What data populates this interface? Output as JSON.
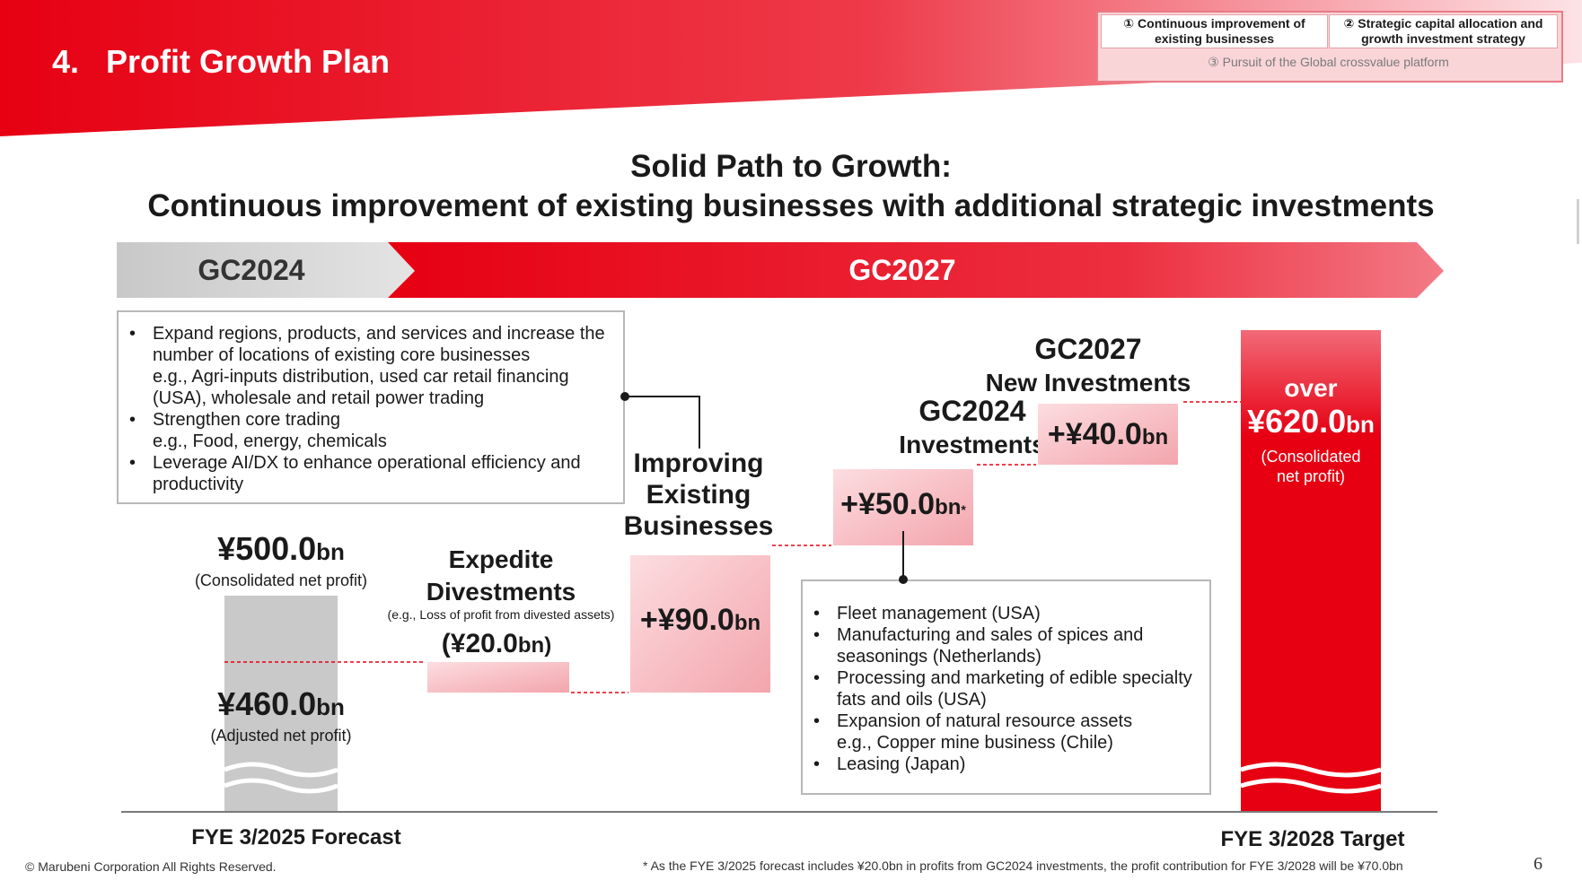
{
  "header": {
    "title": "4.   Profit Growth Plan",
    "nav": {
      "item1": "① Continuous improvement of existing businesses",
      "item2": "② Strategic capital allocation and growth investment strategy",
      "item3": "③ Pursuit of the Global crossvalue platform"
    }
  },
  "headline": {
    "line1": "Solid Path to Growth:",
    "line2": "Continuous improvement of existing businesses with additional strategic investments"
  },
  "periods": {
    "left": "GC2024",
    "right": "GC2027"
  },
  "improve_box": {
    "items": [
      {
        "text": "Expand regions, products, and services and increase the number of locations of existing core businesses",
        "sub": "e.g., Agri-inputs distribution, used car retail financing (USA), wholesale and retail power trading"
      },
      {
        "text": "Strengthen core trading",
        "sub": "e.g., Food, energy, chemicals"
      },
      {
        "text": "Leverage AI/DX to enhance operational efficiency and productivity",
        "sub": ""
      }
    ]
  },
  "invest_box": {
    "items": [
      {
        "text": "Fleet management (USA)",
        "sub": ""
      },
      {
        "text": "Manufacturing and sales of spices and seasonings (Netherlands)",
        "sub": ""
      },
      {
        "text": "Processing and marketing of edible specialty fats and oils (USA)",
        "sub": ""
      },
      {
        "text": "Expansion of natural resource assets",
        "sub": "e.g., Copper mine business (Chile)"
      },
      {
        "text": "Leasing (Japan)",
        "sub": ""
      }
    ]
  },
  "chart_data": {
    "type": "bar",
    "subtype": "waterfall",
    "unit": "¥bn",
    "categories": [
      "FYE 3/2025 Forecast",
      "Expedite Divestments",
      "Improving Existing Businesses",
      "GC2024 Investments",
      "GC2027 New Investments",
      "FYE 3/2028 Target"
    ],
    "values": [
      460.0,
      -20.0,
      90.0,
      50.0,
      40.0,
      620.0
    ],
    "bars": [
      {
        "name": "FYE 3/2025 Forecast",
        "kind": "total",
        "value": 460.0,
        "label": "¥460.0",
        "unit": "bn",
        "sublabel": "(Adjusted net profit)",
        "top_label": "¥500.0",
        "top_unit": "bn",
        "top_sublabel": "(Consolidated net profit)",
        "top_value": 500.0,
        "color": "#c9c9c9"
      },
      {
        "name": "Expedite Divestments",
        "title1": "Expedite",
        "title2": "Divestments",
        "note": "(e.g., Loss of profit from divested assets)",
        "kind": "delta",
        "value": -20.0,
        "label": "(¥20.0",
        "unit": "bn)",
        "color": "#f2a9b0"
      },
      {
        "name": "Improving Existing Businesses",
        "title1": "Improving",
        "title2": "Existing",
        "title3": "Businesses",
        "kind": "delta",
        "value": 90.0,
        "label": "+¥90.0",
        "unit": "bn",
        "color": "#f2a9b0"
      },
      {
        "name": "GC2024 Investments",
        "title1": "GC2024",
        "title2": "Investments",
        "kind": "delta",
        "value": 50.0,
        "label": "+¥50.0",
        "unit": "bn",
        "marker": "*",
        "color": "#f2a9b0"
      },
      {
        "name": "GC2027 New Investments",
        "title1": "GC2027",
        "title2": "New Investments",
        "kind": "delta",
        "value": 40.0,
        "label": "+¥40.0",
        "unit": "bn",
        "color": "#f2a9b0"
      },
      {
        "name": "FYE 3/2028 Target",
        "kind": "total",
        "value": 620.0,
        "prefix": "over",
        "label": "¥620.0",
        "unit": "bn",
        "sublabel1": "(Consolidated",
        "sublabel2": "net profit)",
        "color": "#e60012"
      }
    ],
    "xlabels": {
      "left": "FYE 3/2025 Forecast",
      "right": "FYE 3/2028 Target"
    }
  },
  "footer": {
    "copyright": "© Marubeni Corporation All Rights Reserved.",
    "footnote": "* As the FYE 3/2025 forecast includes ¥20.0bn in profits from GC2024 investments, the profit contribution for FYE 3/2028 will be ¥70.0bn",
    "page": "6"
  },
  "colors": {
    "brand_red": "#e60012",
    "light_pink": "#f2a9b0",
    "gray": "#c9c9c9"
  }
}
